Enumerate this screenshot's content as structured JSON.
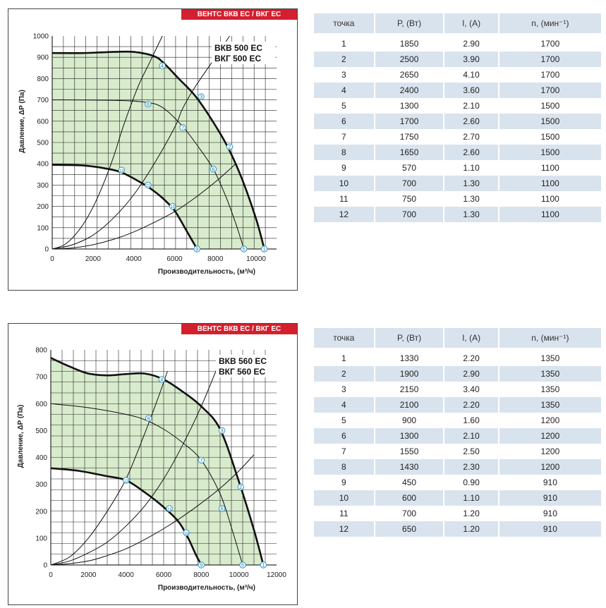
{
  "colors": {
    "badge_bg": "#d3202f",
    "fill": "#d8ebcc",
    "row_alt": "#d9e3ee",
    "marker": "#2a97c9"
  },
  "chart_data": [
    {
      "type": "line",
      "badge": "ВЕНТС ВКВ ЕС / ВКГ ЕС",
      "model_lines": [
        "ВКВ 500 ЕС",
        "ВКГ 500 ЕС"
      ],
      "ylabel": "Давление, ΔP (Па)",
      "xlabel": "Производительность, (м³/ч)",
      "xlim": [
        0,
        11000
      ],
      "ylim": [
        0,
        1000
      ],
      "xticks": [
        0,
        2000,
        4000,
        6000,
        8000,
        10000
      ],
      "yticks": [
        0,
        100,
        200,
        300,
        400,
        500,
        600,
        700,
        800,
        900,
        1000
      ],
      "grid": true,
      "series": [
        {
          "role": "max-speed",
          "bold": true,
          "x": [
            0,
            1500,
            3000,
            4000,
            5000,
            5500,
            6200,
            7000,
            7800,
            8600,
            9300,
            10000,
            10400
          ],
          "y": [
            920,
            920,
            925,
            925,
            905,
            870,
            800,
            720,
            610,
            480,
            330,
            140,
            0
          ]
        },
        {
          "role": "mid-speed",
          "bold": false,
          "x": [
            0,
            3000,
            4500,
            5400,
            6400,
            7200,
            7900,
            8500,
            9000,
            9400
          ],
          "y": [
            700,
            698,
            690,
            665,
            575,
            475,
            375,
            250,
            120,
            0
          ]
        },
        {
          "role": "min-speed",
          "bold": true,
          "x": [
            0,
            1500,
            2800,
            3500,
            4200,
            4800,
            5400,
            6000,
            6500,
            7100
          ],
          "y": [
            395,
            392,
            375,
            355,
            320,
            285,
            240,
            180,
            100,
            0
          ]
        },
        {
          "role": "system",
          "bold": false,
          "x": [
            0,
            1000,
            2000,
            3000,
            4000,
            5000,
            6000,
            7000,
            8000,
            9000
          ],
          "y": [
            0,
            5,
            20,
            45,
            80,
            125,
            175,
            240,
            315,
            400
          ]
        },
        {
          "role": "system",
          "bold": false,
          "x": [
            0,
            1000,
            2000,
            3000,
            4000,
            5000,
            6000,
            6400,
            7000,
            8000,
            8700
          ],
          "y": [
            0,
            20,
            65,
            145,
            255,
            400,
            570,
            660,
            760,
            900,
            1000
          ]
        },
        {
          "role": "system",
          "bold": false,
          "x": [
            0,
            600,
            1200,
            1800,
            2400,
            3000,
            3500,
            4200,
            4800,
            5400
          ],
          "y": [
            0,
            20,
            75,
            160,
            280,
            430,
            580,
            760,
            880,
            1000
          ]
        }
      ],
      "points": [
        {
          "label": "1",
          "x": 10400,
          "y": 0
        },
        {
          "label": "2",
          "x": 8700,
          "y": 480
        },
        {
          "label": "3",
          "x": 7300,
          "y": 715
        },
        {
          "label": "4",
          "x": 5400,
          "y": 860
        },
        {
          "label": "5",
          "x": 9400,
          "y": 0
        },
        {
          "label": "6",
          "x": 7900,
          "y": 375
        },
        {
          "label": "7",
          "x": 6400,
          "y": 570
        },
        {
          "label": "8",
          "x": 4700,
          "y": 680
        },
        {
          "label": "9",
          "x": 7100,
          "y": 0
        },
        {
          "label": "10",
          "x": 5900,
          "y": 200
        },
        {
          "label": "11",
          "x": 4700,
          "y": 300
        },
        {
          "label": "12",
          "x": 3400,
          "y": 370
        }
      ]
    },
    {
      "type": "line",
      "badge": "ВЕНТС ВКВ ЕС / ВКГ ЕС",
      "model_lines": [
        "ВКВ 560 ЕС",
        "ВКГ 560 ЕС"
      ],
      "ylabel": "Давление, ΔP (Па)",
      "xlabel": "Производительность, (м³/ч)",
      "xlim": [
        0,
        12000
      ],
      "ylim": [
        0,
        800
      ],
      "xticks": [
        0,
        2000,
        4000,
        6000,
        8000,
        10000,
        12000
      ],
      "yticks": [
        0,
        100,
        200,
        300,
        400,
        500,
        600,
        700,
        800
      ],
      "grid": true,
      "series": [
        {
          "role": "max-speed",
          "bold": true,
          "x": [
            0,
            1000,
            2000,
            3000,
            4000,
            5000,
            6000,
            7000,
            8000,
            9000,
            10000,
            10800,
            11300
          ],
          "y": [
            770,
            738,
            712,
            705,
            710,
            712,
            690,
            645,
            590,
            505,
            310,
            130,
            0
          ]
        },
        {
          "role": "mid-speed",
          "bold": false,
          "x": [
            0,
            2000,
            4000,
            5000,
            6000,
            7000,
            8000,
            9000,
            9600,
            10200
          ],
          "y": [
            600,
            585,
            560,
            540,
            505,
            455,
            390,
            265,
            140,
            0
          ]
        },
        {
          "role": "min-speed",
          "bold": true,
          "x": [
            0,
            1500,
            3000,
            4000,
            5000,
            6000,
            6800,
            7300,
            7700,
            8000
          ],
          "y": [
            360,
            350,
            330,
            315,
            270,
            215,
            160,
            100,
            40,
            0
          ]
        },
        {
          "role": "system",
          "bold": false,
          "x": [
            0,
            1000,
            2000,
            3000,
            4000,
            5000,
            6000,
            7000,
            8000,
            9000,
            10000,
            10800
          ],
          "y": [
            0,
            5,
            15,
            35,
            60,
            95,
            135,
            180,
            230,
            285,
            350,
            410
          ]
        },
        {
          "role": "system",
          "bold": false,
          "x": [
            0,
            1000,
            2000,
            3000,
            4000,
            5000,
            6000,
            7000,
            8000,
            9000
          ],
          "y": [
            0,
            15,
            45,
            85,
            145,
            220,
            320,
            445,
            590,
            760
          ]
        },
        {
          "role": "system",
          "bold": false,
          "x": [
            0,
            1000,
            2000,
            3000,
            4000,
            5000,
            5800,
            6200
          ],
          "y": [
            0,
            30,
            100,
            200,
            320,
            490,
            640,
            720
          ]
        }
      ],
      "points": [
        {
          "label": "1",
          "x": 11300,
          "y": 0
        },
        {
          "label": "2",
          "x": 10100,
          "y": 290
        },
        {
          "label": "3",
          "x": 9100,
          "y": 500
        },
        {
          "label": "4",
          "x": 5900,
          "y": 690
        },
        {
          "label": "5",
          "x": 10200,
          "y": 0
        },
        {
          "label": "6",
          "x": 9100,
          "y": 210
        },
        {
          "label": "7",
          "x": 8000,
          "y": 390
        },
        {
          "label": "8",
          "x": 5200,
          "y": 545
        },
        {
          "label": "9",
          "x": 8000,
          "y": 0
        },
        {
          "label": "10",
          "x": 7200,
          "y": 120
        },
        {
          "label": "11",
          "x": 6300,
          "y": 210
        },
        {
          "label": "12",
          "x": 4000,
          "y": 315
        }
      ]
    }
  ],
  "tables": [
    {
      "headers": [
        "точка",
        "P, (Вт)",
        "I, (А)",
        "n, (мин⁻¹)"
      ],
      "rows": [
        [
          "1",
          "1850",
          "2.90",
          "1700"
        ],
        [
          "2",
          "2500",
          "3.90",
          "1700"
        ],
        [
          "3",
          "2650",
          "4.10",
          "1700"
        ],
        [
          "4",
          "2400",
          "3.60",
          "1700"
        ],
        [
          "5",
          "1300",
          "2.10",
          "1500"
        ],
        [
          "6",
          "1700",
          "2.60",
          "1500"
        ],
        [
          "7",
          "1750",
          "2.70",
          "1500"
        ],
        [
          "8",
          "1650",
          "2.60",
          "1500"
        ],
        [
          "9",
          "570",
          "1.10",
          "1100"
        ],
        [
          "10",
          "700",
          "1.30",
          "1100"
        ],
        [
          "11",
          "750",
          "1.30",
          "1100"
        ],
        [
          "12",
          "700",
          "1.30",
          "1100"
        ]
      ]
    },
    {
      "headers": [
        "точка",
        "P, (Вт)",
        "I, (А)",
        "n, (мин⁻¹)"
      ],
      "rows": [
        [
          "1",
          "1330",
          "2.20",
          "1350"
        ],
        [
          "2",
          "1900",
          "2.90",
          "1350"
        ],
        [
          "3",
          "2150",
          "3.40",
          "1350"
        ],
        [
          "4",
          "2100",
          "2.20",
          "1350"
        ],
        [
          "5",
          "900",
          "1.60",
          "1200"
        ],
        [
          "6",
          "1300",
          "2.10",
          "1200"
        ],
        [
          "7",
          "1550",
          "2.50",
          "1200"
        ],
        [
          "8",
          "1430",
          "2.30",
          "1200"
        ],
        [
          "9",
          "450",
          "0.90",
          "910"
        ],
        [
          "10",
          "600",
          "1.10",
          "910"
        ],
        [
          "11",
          "700",
          "1.20",
          "910"
        ],
        [
          "12",
          "650",
          "1.20",
          "910"
        ]
      ]
    }
  ]
}
